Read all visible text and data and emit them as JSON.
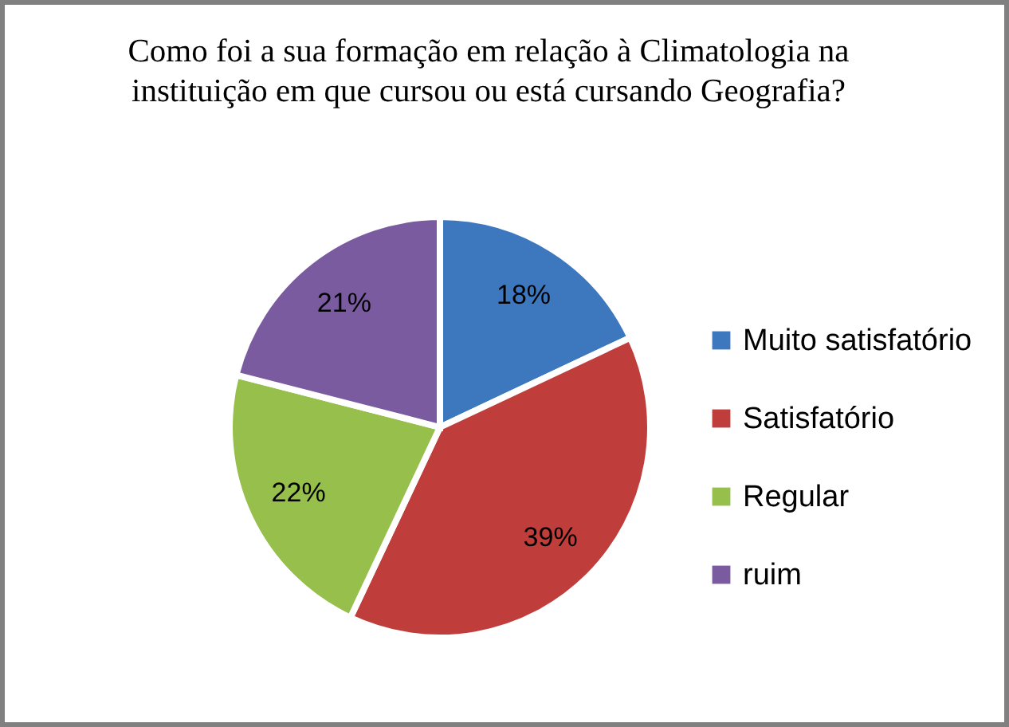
{
  "chart_data": {
    "type": "pie",
    "title": "Como foi a sua formação em relação à Climatologia na instituição em que cursou ou está cursando Geografia?",
    "categories": [
      "Muito satisfatório",
      "Satisfatório",
      "Regular",
      "ruim"
    ],
    "values": [
      18,
      39,
      22,
      21
    ],
    "colors": [
      "#3d78bf",
      "#bf3e3b",
      "#96bf4c",
      "#7a5ba0"
    ],
    "value_labels": [
      "18%",
      "39%",
      "22%",
      "21%"
    ],
    "legend": "right"
  }
}
